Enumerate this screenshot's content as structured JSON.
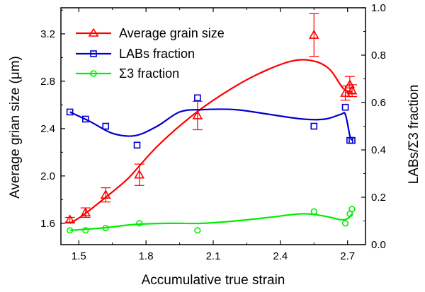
{
  "chart_data": {
    "type": "line",
    "xlabel": "Accumulative true strain",
    "ylabel_left": "Average grian size (μm)",
    "ylabel_right": "LABs/Σ3 fraction",
    "xlim": [
      1.42,
      2.78
    ],
    "ylim_left": [
      1.42,
      3.42
    ],
    "ylim_right": [
      0.0,
      1.0
    ],
    "xticks": [
      "1.5",
      "1.8",
      "2.1",
      "2.4",
      "2.7"
    ],
    "yticks_left": [
      "1.6",
      "2.0",
      "2.4",
      "2.8",
      "3.2"
    ],
    "yticks_right": [
      "0.0",
      "0.2",
      "0.4",
      "0.6",
      "0.8",
      "1.0"
    ],
    "legend_position": "top-left",
    "series": [
      {
        "name": "Average grain size",
        "axis": "left",
        "color": "#ff0000",
        "marker": "triangle",
        "x": [
          1.46,
          1.53,
          1.62,
          1.77,
          2.03,
          2.55,
          2.69,
          2.71,
          2.72
        ],
        "y": [
          1.63,
          1.69,
          1.84,
          2.01,
          2.51,
          3.19,
          2.7,
          2.77,
          2.72
        ],
        "error": [
          0.02,
          0.04,
          0.06,
          0.09,
          0.12,
          0.18,
          0.06,
          0.07,
          0.05
        ],
        "fit": [
          [
            1.46,
            1.6
          ],
          [
            1.52,
            1.67
          ],
          [
            1.62,
            1.82
          ],
          [
            1.72,
            1.98
          ],
          [
            1.85,
            2.25
          ],
          [
            2.0,
            2.5
          ],
          [
            2.15,
            2.7
          ],
          [
            2.3,
            2.86
          ],
          [
            2.45,
            2.97
          ],
          [
            2.55,
            2.97
          ],
          [
            2.62,
            2.9
          ],
          [
            2.68,
            2.74
          ],
          [
            2.72,
            2.71
          ]
        ]
      },
      {
        "name": "LABs fraction",
        "axis": "right",
        "color": "#0000cc",
        "marker": "square",
        "x": [
          1.46,
          1.53,
          1.62,
          1.76,
          2.03,
          2.55,
          2.69,
          2.71,
          2.72
        ],
        "y": [
          0.56,
          0.53,
          0.5,
          0.42,
          0.62,
          0.5,
          0.58,
          0.44,
          0.44
        ],
        "fit": [
          [
            1.46,
            0.56
          ],
          [
            1.55,
            0.52
          ],
          [
            1.65,
            0.47
          ],
          [
            1.75,
            0.46
          ],
          [
            1.85,
            0.5
          ],
          [
            1.95,
            0.56
          ],
          [
            2.05,
            0.57
          ],
          [
            2.2,
            0.57
          ],
          [
            2.35,
            0.55
          ],
          [
            2.5,
            0.53
          ],
          [
            2.6,
            0.53
          ],
          [
            2.67,
            0.55
          ],
          [
            2.69,
            0.55
          ],
          [
            2.71,
            0.46
          ],
          [
            2.72,
            0.44
          ]
        ]
      },
      {
        "name": "Σ3 fraction",
        "axis": "right",
        "color": "#00ee00",
        "marker": "circle",
        "x": [
          1.46,
          1.53,
          1.62,
          1.77,
          2.03,
          2.55,
          2.69,
          2.71,
          2.72
        ],
        "y": [
          0.06,
          0.06,
          0.07,
          0.09,
          0.06,
          0.14,
          0.09,
          0.13,
          0.15
        ],
        "fit": [
          [
            1.46,
            0.06
          ],
          [
            1.6,
            0.07
          ],
          [
            1.75,
            0.085
          ],
          [
            1.9,
            0.09
          ],
          [
            2.05,
            0.09
          ],
          [
            2.2,
            0.1
          ],
          [
            2.35,
            0.115
          ],
          [
            2.5,
            0.13
          ],
          [
            2.6,
            0.12
          ],
          [
            2.67,
            0.105
          ],
          [
            2.7,
            0.11
          ],
          [
            2.72,
            0.13
          ]
        ]
      }
    ]
  }
}
